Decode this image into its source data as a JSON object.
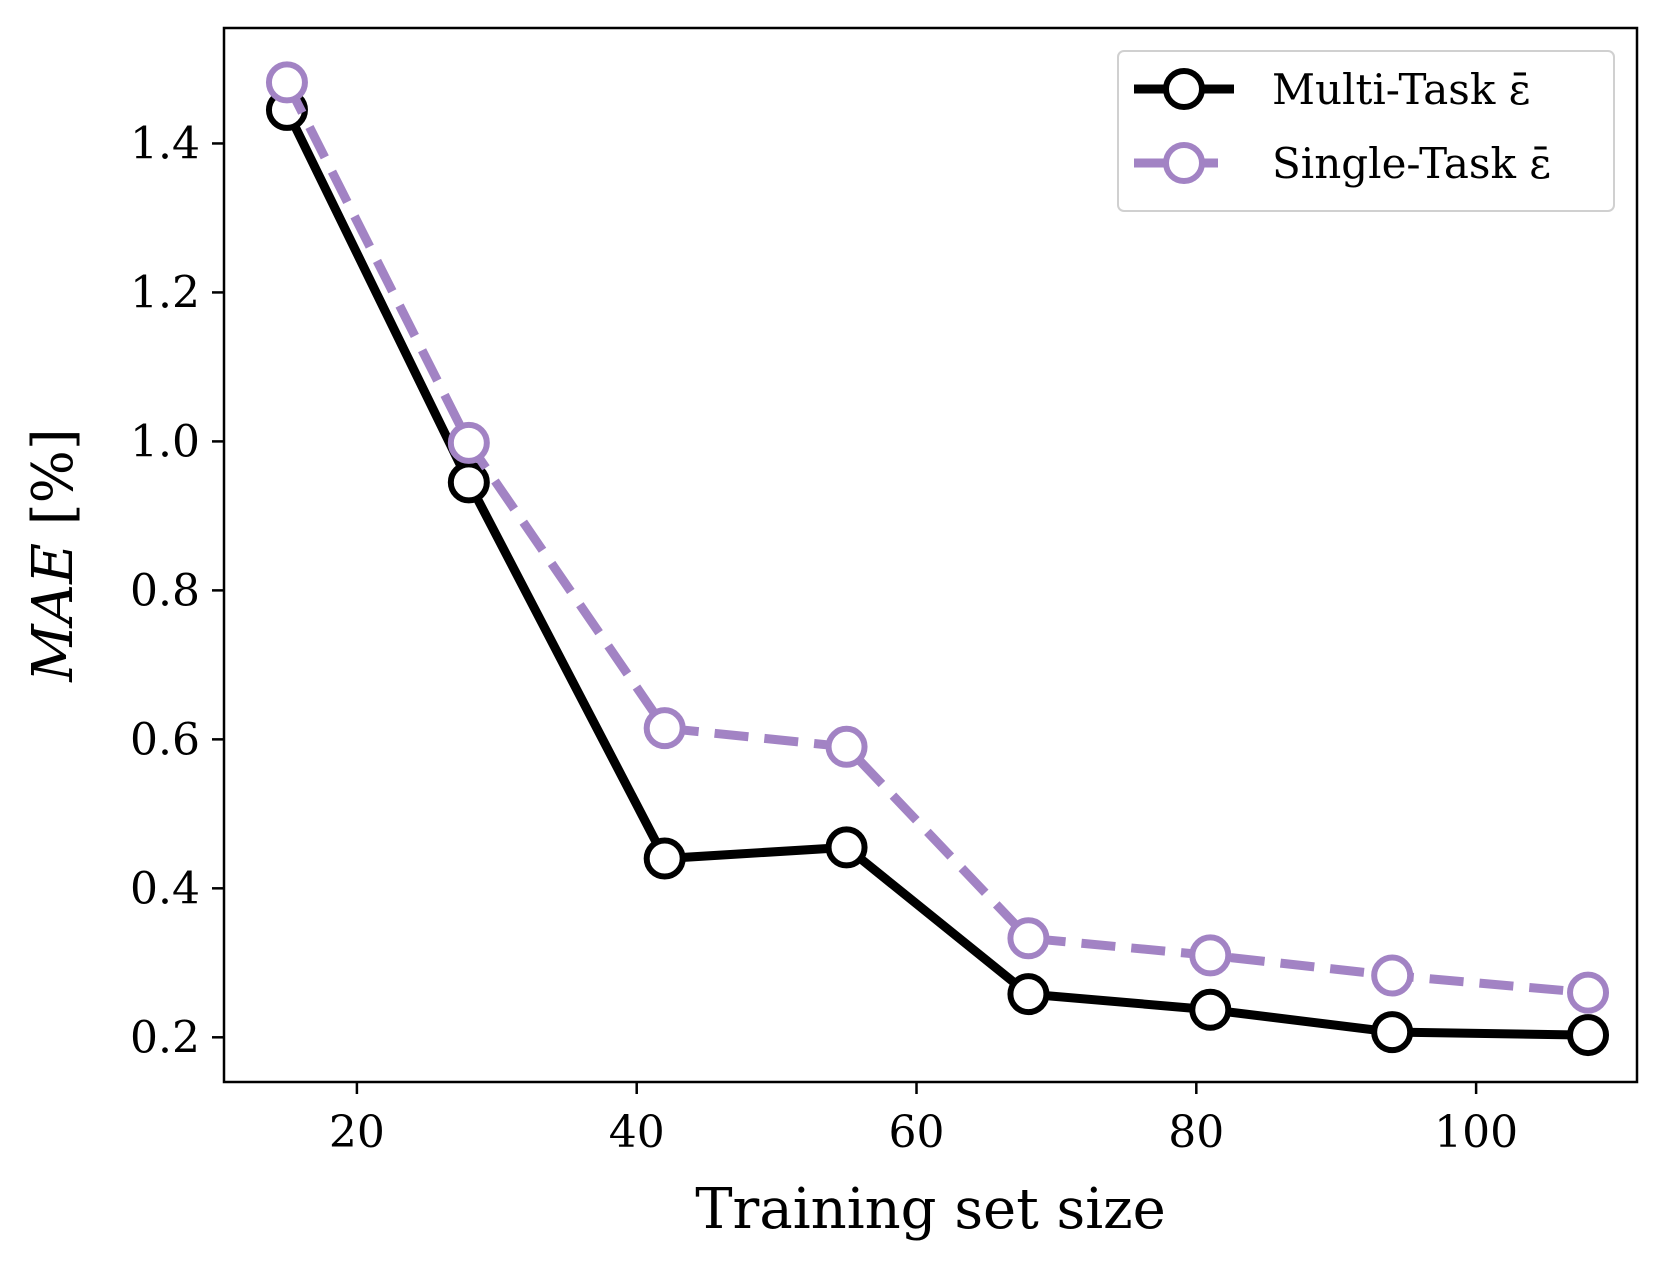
{
  "chart_data": {
    "type": "line",
    "title": "",
    "xlabel": "Training set size",
    "ylabel_italic": "MAE",
    "ylabel_unit": " [%]",
    "xlim": [
      10.5,
      111.5
    ],
    "ylim": [
      0.14,
      1.555
    ],
    "xticks": [
      20,
      40,
      60,
      80,
      100
    ],
    "xtick_labels": [
      "20",
      "40",
      "60",
      "80",
      "100"
    ],
    "yticks": [
      0.2,
      0.4,
      0.6,
      0.8,
      1.0,
      1.2,
      1.4
    ],
    "ytick_labels": [
      "0.2",
      "0.4",
      "0.6",
      "0.8",
      "1.0",
      "1.2",
      "1.4"
    ],
    "grid": false,
    "legend_position": "top-right",
    "x": [
      15,
      28,
      42,
      55,
      68,
      81,
      94,
      108
    ],
    "series": [
      {
        "name": "Multi-Task ε̄",
        "values": [
          1.445,
          0.945,
          0.44,
          0.455,
          0.258,
          0.237,
          0.207,
          0.203
        ],
        "color": "#000000",
        "style": "solid"
      },
      {
        "name": "Single-Task ε̄",
        "values": [
          1.482,
          0.998,
          0.615,
          0.59,
          0.333,
          0.31,
          0.283,
          0.26
        ],
        "color": "#a283c4",
        "style": "dashed"
      }
    ]
  }
}
